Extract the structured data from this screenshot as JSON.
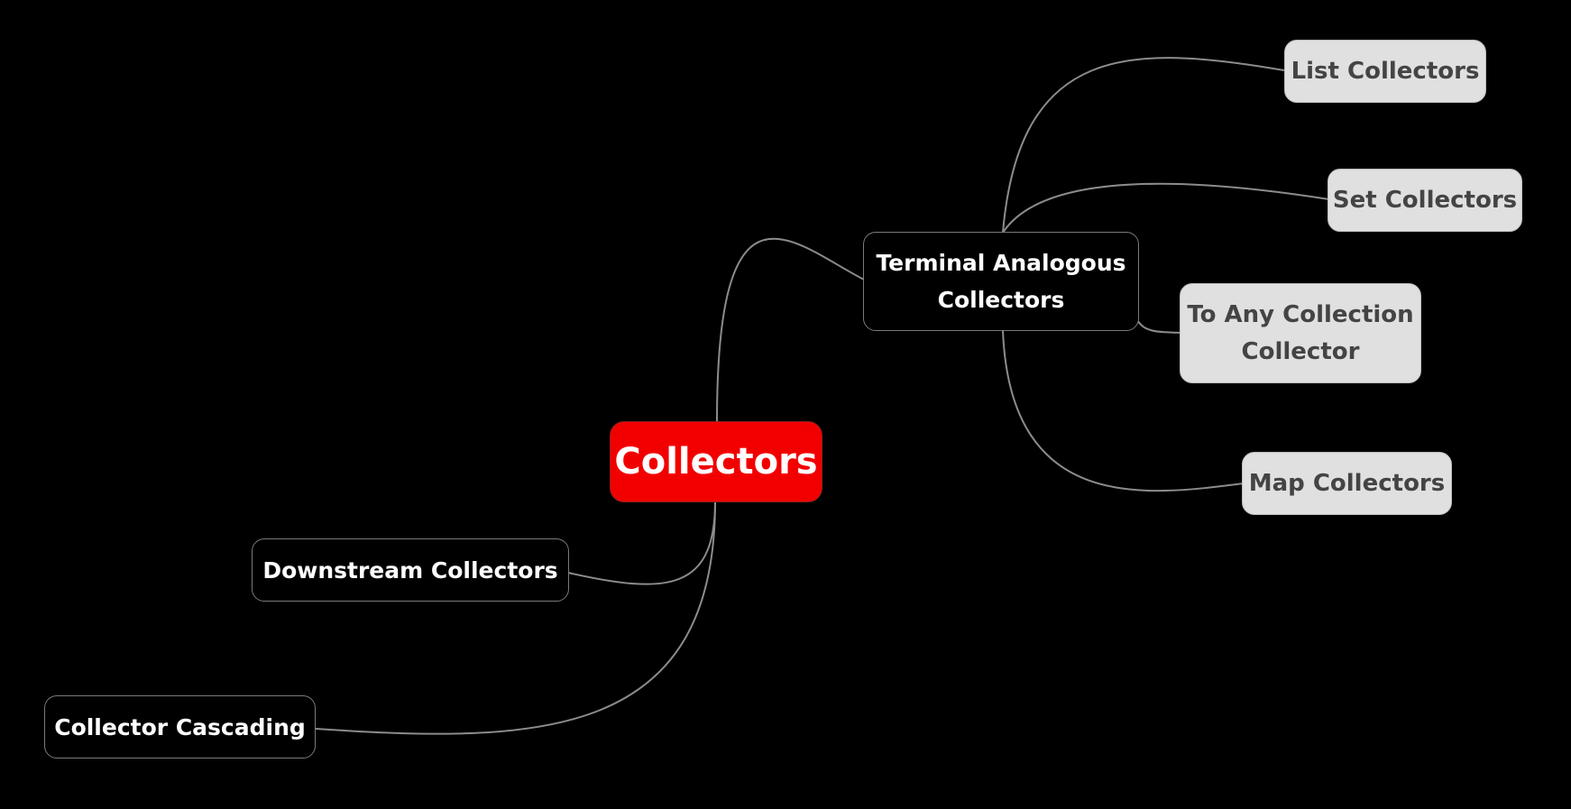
{
  "root": {
    "label": "Collectors",
    "color": "#f20000"
  },
  "branches": {
    "terminal": {
      "label": "Terminal Analogous\nCollectors"
    },
    "downstream": {
      "label": "Downstream Collectors"
    },
    "cascading": {
      "label": "Collector Cascading"
    }
  },
  "leaves": {
    "list": {
      "label": "List Collectors"
    },
    "set": {
      "label": "Set Collectors"
    },
    "any": {
      "label": "To Any Collection\nCollector"
    },
    "map": {
      "label": "Map Collectors"
    }
  },
  "colors": {
    "background": "#000000",
    "connector": "#8c8c8c",
    "leaf_fill": "#e0e0e0"
  }
}
